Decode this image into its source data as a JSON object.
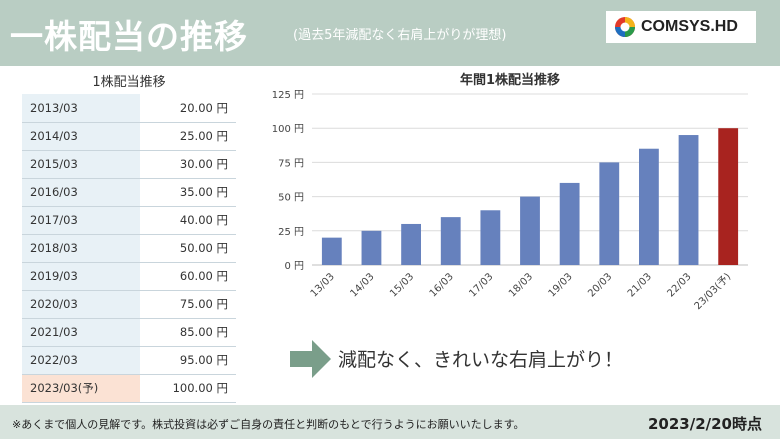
{
  "header": {
    "title": "一株配当の推移",
    "subtitle": "(過去5年減配なく右肩上がりが理想)",
    "logo_text": "COMSYS.HD"
  },
  "table": {
    "title": "1株配当推移",
    "rows": [
      {
        "year": "2013/03",
        "value": "20.00 円"
      },
      {
        "year": "2014/03",
        "value": "25.00 円"
      },
      {
        "year": "2015/03",
        "value": "30.00 円"
      },
      {
        "year": "2016/03",
        "value": "35.00 円"
      },
      {
        "year": "2017/03",
        "value": "40.00 円"
      },
      {
        "year": "2018/03",
        "value": "50.00 円"
      },
      {
        "year": "2019/03",
        "value": "60.00 円"
      },
      {
        "year": "2020/03",
        "value": "75.00 円"
      },
      {
        "year": "2021/03",
        "value": "85.00 円"
      },
      {
        "year": "2022/03",
        "value": "95.00 円"
      },
      {
        "year": "2023/03(予)",
        "value": "100.00 円"
      }
    ]
  },
  "chart_data": {
    "type": "bar",
    "title": "年間1株配当推移",
    "categories": [
      "13/03",
      "14/03",
      "15/03",
      "16/03",
      "17/03",
      "18/03",
      "19/03",
      "20/03",
      "21/03",
      "22/03",
      "23/03(予)"
    ],
    "values": [
      20,
      25,
      30,
      35,
      40,
      50,
      60,
      75,
      85,
      95,
      100
    ],
    "ylim": [
      0,
      125
    ],
    "yticks": [
      0,
      25,
      50,
      75,
      100,
      125
    ],
    "ytick_labels": [
      "0 円",
      "25 円",
      "50 円",
      "75 円",
      "100 円",
      "125 円"
    ],
    "colors": {
      "actual": "#6681bd",
      "forecast": "#a8231f"
    },
    "highlight_index": 10,
    "grid": true,
    "legend": "none"
  },
  "message": "減配なく、きれいな右肩上がり！",
  "footer": {
    "note": "※あくまで個人の見解です。株式投資は必ずご自身の責任と判断のもとで行うようにお願いいたします。",
    "date": "2023/2/20時点"
  }
}
